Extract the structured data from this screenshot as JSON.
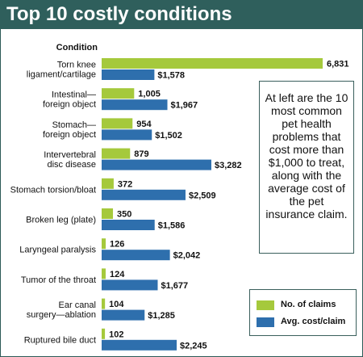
{
  "chart_data": {
    "type": "bar",
    "orientation": "horizontal",
    "title": "Top 10 costly conditions",
    "category_axis_label": "Condition",
    "categories": [
      [
        "Torn knee",
        "ligament/cartilage"
      ],
      [
        "Intestinal—",
        "foreign object"
      ],
      [
        "Stomach—",
        "foreign object"
      ],
      [
        "Intervertebral",
        "disc disease"
      ],
      [
        "Stomach torsion/bloat"
      ],
      [
        "Broken leg (plate)"
      ],
      [
        "Laryngeal paralysis"
      ],
      [
        "Tumor of the throat"
      ],
      [
        "Ear canal",
        "surgery—ablation"
      ],
      [
        "Ruptured bile duct"
      ]
    ],
    "series": [
      {
        "name": "No. of claims",
        "color": "#a5c93c",
        "values": [
          6831,
          1005,
          954,
          879,
          372,
          350,
          126,
          124,
          104,
          102
        ],
        "labels": [
          "6,831",
          "1,005",
          "954",
          "879",
          "372",
          "350",
          "126",
          "124",
          "104",
          "102"
        ]
      },
      {
        "name": "Avg. cost/claim",
        "color": "#2e6fad",
        "values": [
          1578,
          1967,
          1502,
          3282,
          2509,
          1586,
          2042,
          1677,
          1285,
          2245
        ],
        "labels": [
          "$1,578",
          "$1,967",
          "$1,502",
          "$3,282",
          "$2,509",
          "$1,586",
          "$2,042",
          "$1,677",
          "$1,285",
          "$2,245"
        ]
      }
    ],
    "legend_position": "bottom-right",
    "grid": false
  },
  "info_box": {
    "text": "At left are the 10 most common pet health problems that cost more than $1,000 to treat, along with the average cost of the pet insurance claim."
  },
  "colors": {
    "title_bar": "#2f5f5c",
    "claims": "#a5c93c",
    "cost": "#2e6fad"
  }
}
